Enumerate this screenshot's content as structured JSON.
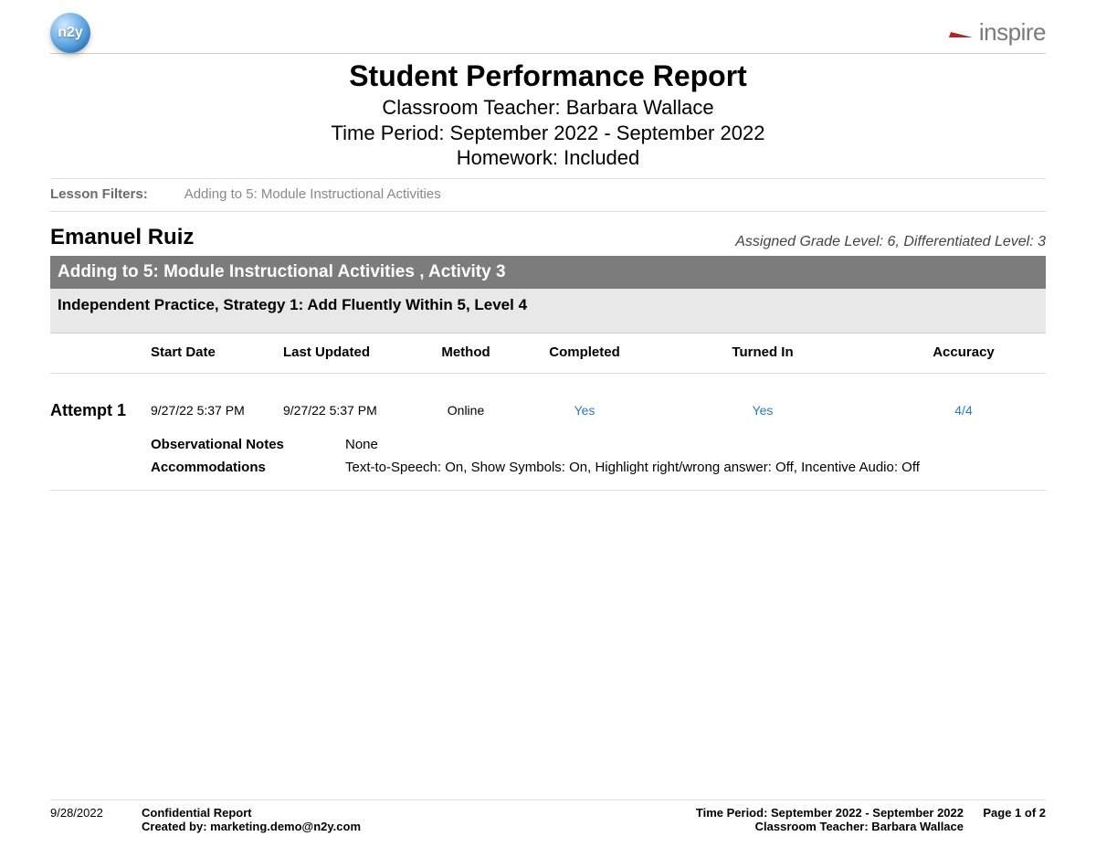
{
  "brand": {
    "left_logo_text": "n2y",
    "right_word": "inspire"
  },
  "header": {
    "title": "Student Performance Report",
    "teacher_line": "Classroom Teacher: Barbara Wallace",
    "period_line": "Time Period: September 2022 - September 2022",
    "homework_line": "Homework: Included"
  },
  "filters": {
    "label": "Lesson Filters:",
    "value": "Adding to 5: Module Instructional Activities"
  },
  "student": {
    "name": "Emanuel Ruiz",
    "meta": "Assigned Grade Level: 6, Differentiated Level: 3"
  },
  "section": {
    "dark": "Adding to 5: Module Instructional Activities , Activity 3",
    "light": "Independent Practice, Strategy 1: Add Fluently Within 5, Level 4"
  },
  "table": {
    "columns": [
      "",
      "Start Date",
      "Last Updated",
      "Method",
      "Completed",
      "Turned In",
      "Accuracy"
    ],
    "row": {
      "attempt": "Attempt 1",
      "start": "9/27/22 5:37 PM",
      "updated": "9/27/22 5:37 PM",
      "method": "Online",
      "completed": "Yes",
      "turned_in": "Yes",
      "accuracy": "4/4"
    },
    "details": {
      "obs_label": "Observational Notes",
      "obs_value": "None",
      "acc_label": "Accommodations",
      "acc_value": "Text-to-Speech: On, Show Symbols: On, Highlight right/wrong answer: Off, Incentive Audio: Off"
    }
  },
  "footer": {
    "date": "9/28/2022",
    "conf": "Confidential Report",
    "created": "Created by: marketing.demo@n2y.com",
    "period": "Time Period: September 2022 - September 2022",
    "teacher": "Classroom Teacher: Barbara Wallace",
    "page": "Page 1 of 2"
  },
  "colors": {
    "link": "#2a7bbf",
    "bar_dark": "#7c7c7c",
    "bar_light": "#e8e8e8",
    "border": "#dcdcdc"
  }
}
